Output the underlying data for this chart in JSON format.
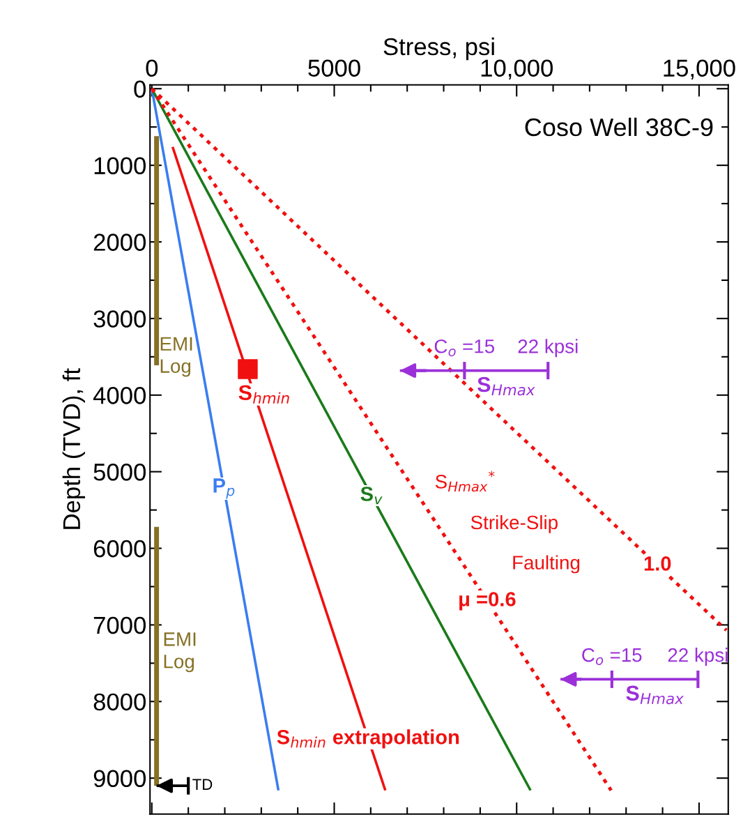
{
  "chart_data": {
    "type": "line",
    "xlabel": "Stress, psi",
    "ylabel": "Depth (TVD), ft",
    "xlim": [
      -50,
      15800
    ],
    "ylim": [
      9470,
      -50
    ],
    "xticks": [
      0,
      {
        "value": 1000,
        "label": null
      },
      {
        "value": 2000,
        "label": null
      },
      {
        "value": 3000,
        "label": null
      },
      {
        "value": 4000,
        "label": null
      },
      5000,
      {
        "value": 6000,
        "label": null
      },
      {
        "value": 7000,
        "label": null
      },
      {
        "value": 8000,
        "label": null
      },
      {
        "value": 9000,
        "label": null
      },
      {
        "value": 10000,
        "label": "10,000"
      },
      {
        "value": 11000,
        "label": null
      },
      {
        "value": 12000,
        "label": null
      },
      {
        "value": 13000,
        "label": null
      },
      {
        "value": 14000,
        "label": null
      },
      {
        "value": 15000,
        "label": "15,000"
      }
    ],
    "yticks": [
      0,
      {
        "value": 500,
        "label": null
      },
      1000,
      {
        "value": 1500,
        "label": null
      },
      2000,
      {
        "value": 2500,
        "label": null
      },
      3000,
      {
        "value": 3500,
        "label": null
      },
      4000,
      {
        "value": 4500,
        "label": null
      },
      5000,
      {
        "value": 5500,
        "label": null
      },
      6000,
      {
        "value": 6500,
        "label": null
      },
      7000,
      {
        "value": 7500,
        "label": null
      },
      8000,
      {
        "value": 8500,
        "label": null
      },
      9000
    ],
    "series": [
      {
        "color": "#857024",
        "x": [
          130,
          130
        ],
        "values": [
          620,
          3610
        ]
      },
      {
        "color": "#857024",
        "x": [
          130,
          130
        ],
        "values": [
          5720,
          9100
        ]
      },
      {
        "name": "P$_{p}$",
        "color": "#3a7df0",
        "x": [
          0,
          3470
        ],
        "values": [
          0,
          9160
        ]
      },
      {
        "name": "S$_{hmin}$ extrapolation",
        "color": "#f01010",
        "x": [
          570,
          6400
        ],
        "values": [
          760,
          9160
        ]
      },
      {
        "name": "S$_{hmin}$",
        "type": "scatter",
        "marker": "square",
        "color": "#f01010",
        "x": [
          2630
        ],
        "values": [
          3660
        ]
      },
      {
        "name": "S$_{v}$",
        "color": "#1a7a1a",
        "x": [
          0,
          10380
        ],
        "values": [
          0,
          9160
        ]
      },
      {
        "name": "μ =0.6",
        "color": "#f01010",
        "line_style": "dotted",
        "x": [
          0,
          12590
        ],
        "values": [
          0,
          9160
        ]
      },
      {
        "name": "1.0",
        "color": "#f01010",
        "line_style": "dotted",
        "x": [
          0,
          15750
        ],
        "values": [
          0,
          7070
        ]
      },
      {
        "name": "S$_{Hmax}$",
        "color": "#9b30d9",
        "x": [
          10860,
          8570,
          6800
        ],
        "values": [
          3680,
          3680,
          3680
        ]
      },
      {
        "name": "S$_{Hmax}$",
        "color": "#9b30d9",
        "x": [
          14970,
          12610,
          11200
        ],
        "values": [
          7710,
          7710,
          7710
        ]
      },
      {
        "name": "TD",
        "color": "#000000",
        "x": [
          1000,
          130
        ],
        "values": [
          9100,
          9100
        ]
      }
    ],
    "annotations": [
      "Coso Well 38C-9",
      "S$_{Hmax}$$^{*}$",
      "Strike-Slip",
      "Faulting",
      "EMI\nLog",
      "EMI\nLog",
      {
        "text": "C$_{o}$ =15",
        "x": 8570,
        "y": 3680
      },
      {
        "text": "22 kpsi",
        "x": 10860,
        "y": 3680
      },
      {
        "text": "C$_{o}$ =15",
        "x": 12610,
        "y": 7710
      },
      {
        "text": "22 kpsi",
        "x": 14970,
        "y": 7710
      }
    ]
  }
}
